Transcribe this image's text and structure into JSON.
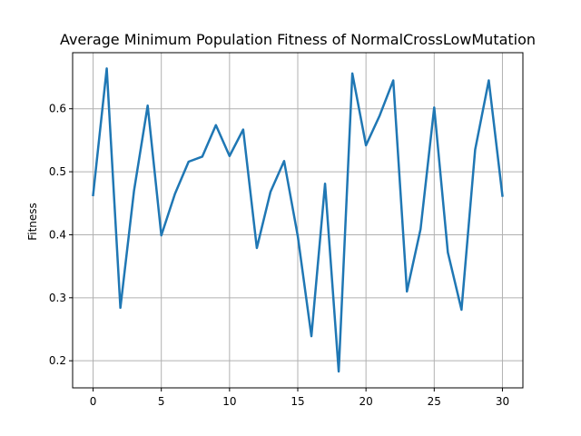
{
  "chart_data": {
    "type": "line",
    "title": "Average Minimum Population Fitness of NormalCrossLowMutation",
    "xlabel": "",
    "ylabel": "Fitness",
    "xlim": [
      -1.5,
      31.5
    ],
    "ylim": [
      0.157,
      0.689
    ],
    "xticks": [
      0,
      5,
      10,
      15,
      20,
      25,
      30
    ],
    "yticks": [
      0.2,
      0.3,
      0.4,
      0.5,
      0.6
    ],
    "ytick_labels": [
      "0.2",
      "0.3",
      "0.4",
      "0.5",
      "0.6"
    ],
    "grid": true,
    "line_color": "#1f77b4",
    "series": [
      {
        "x": [
          0,
          1,
          2,
          3,
          4,
          5,
          6,
          7,
          8,
          9,
          10,
          11,
          12,
          13,
          14,
          15,
          16,
          17,
          18,
          19,
          20,
          21,
          22,
          23,
          24,
          25,
          26,
          27,
          28,
          29,
          30
        ],
        "values": [
          0.463,
          0.664,
          0.284,
          0.47,
          0.605,
          0.399,
          0.465,
          0.516,
          0.524,
          0.574,
          0.525,
          0.567,
          0.379,
          0.468,
          0.517,
          0.398,
          0.239,
          0.481,
          0.183,
          0.656,
          0.542,
          0.589,
          0.645,
          0.31,
          0.409,
          0.602,
          0.372,
          0.281,
          0.535,
          0.645,
          0.462
        ]
      }
    ]
  }
}
